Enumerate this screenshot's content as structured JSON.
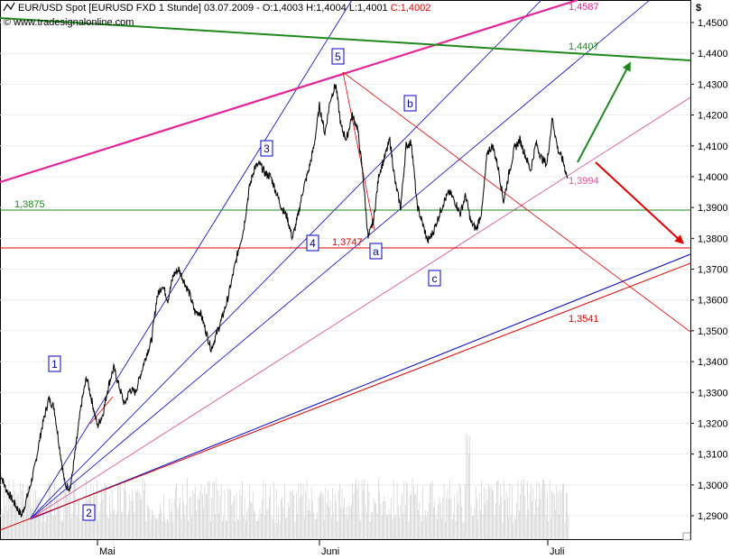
{
  "header": {
    "instrument": "EUR/USD Spot [EURUSD FXD  1 Stunde] 03.07.2009 - O:1,4003 H:1,4004 L:1,4001 ",
    "close_text": "C:1,4002",
    "watermark": "© www.tradesignalonline.com"
  },
  "axis": {
    "currency_symbol": "$",
    "y_ticks": [
      "1,4500",
      "1,4400",
      "1,4300",
      "1,4200",
      "1,4100",
      "1,4000",
      "1,3900",
      "1,3800",
      "1,3700",
      "1,3600",
      "1,3500",
      "1,3400",
      "1,3300",
      "1,3200",
      "1,3100",
      "1,3000",
      "1,2900"
    ],
    "x_ticks": [
      "Mai",
      "Juni",
      "Juli"
    ]
  },
  "levels": {
    "top_magenta": "1,4587",
    "green_trend": "1,4407",
    "horizontal_green": "1,3875",
    "horizontal_red": "1,3747",
    "red_lower": "1,3541",
    "current": "1,3994"
  },
  "waves": [
    "1",
    "2",
    "3",
    "4",
    "5",
    "a",
    "b",
    "c"
  ],
  "colors": {
    "price": "#000000",
    "fan_lines": "#0000cc",
    "magenta": "#e8239a",
    "pink_thin": "#e0559e",
    "green_line": "#1e8a1e",
    "red_line": "#e00000",
    "up_arrow": "#1e8a1e",
    "down_arrow": "#e00000",
    "volume": "#c9c9c9"
  },
  "chart_data": {
    "type": "line",
    "title": "EUR/USD Spot [EURUSD FXD  1 Stunde] 03.07.2009",
    "xlabel": "",
    "ylabel": "$",
    "ylim": [
      1.283,
      1.465
    ],
    "x_categories": [
      "Mai",
      "Juni",
      "Juli"
    ],
    "series": [
      {
        "name": "EUR/USD",
        "x": [
          0,
          6,
          12,
          18,
          24,
          32,
          38,
          46,
          54,
          60,
          66,
          72,
          78,
          84,
          90,
          96,
          102,
          108,
          114,
          120,
          126,
          132,
          138,
          144,
          150,
          156,
          162,
          168,
          174,
          180,
          186,
          192,
          198,
          204,
          210,
          216,
          222,
          228,
          234,
          240,
          246,
          252,
          258,
          264,
          270,
          276,
          282,
          288,
          294,
          300,
          306,
          312,
          318,
          324,
          330,
          336,
          342,
          348,
          354,
          360,
          366,
          372,
          378,
          384,
          390,
          396,
          402,
          408,
          414,
          420,
          426,
          432,
          438,
          444,
          450,
          456,
          462,
          468,
          474,
          480,
          486,
          492,
          498,
          504,
          510,
          516,
          522,
          528,
          534,
          540,
          546,
          552,
          558,
          564,
          570,
          576,
          582,
          588,
          594,
          600,
          606,
          612,
          618,
          624,
          629
        ],
        "y": [
          1.304,
          1.299,
          1.296,
          1.293,
          1.29,
          1.298,
          1.305,
          1.318,
          1.328,
          1.325,
          1.312,
          1.3,
          1.299,
          1.312,
          1.326,
          1.335,
          1.327,
          1.319,
          1.323,
          1.332,
          1.338,
          1.332,
          1.326,
          1.331,
          1.33,
          1.336,
          1.342,
          1.347,
          1.361,
          1.365,
          1.36,
          1.368,
          1.37,
          1.366,
          1.362,
          1.356,
          1.356,
          1.35,
          1.344,
          1.349,
          1.354,
          1.36,
          1.368,
          1.376,
          1.383,
          1.396,
          1.403,
          1.404,
          1.401,
          1.4,
          1.395,
          1.39,
          1.387,
          1.38,
          1.387,
          1.396,
          1.402,
          1.41,
          1.423,
          1.414,
          1.425,
          1.43,
          1.416,
          1.412,
          1.42,
          1.416,
          1.401,
          1.38,
          1.386,
          1.401,
          1.406,
          1.412,
          1.398,
          1.39,
          1.41,
          1.411,
          1.391,
          1.385,
          1.379,
          1.382,
          1.387,
          1.392,
          1.395,
          1.392,
          1.388,
          1.394,
          1.385,
          1.383,
          1.389,
          1.408,
          1.41,
          1.403,
          1.392,
          1.401,
          1.409,
          1.412,
          1.407,
          1.402,
          1.411,
          1.406,
          1.404,
          1.419,
          1.409,
          1.405,
          1.3994
        ]
      }
    ]
  }
}
